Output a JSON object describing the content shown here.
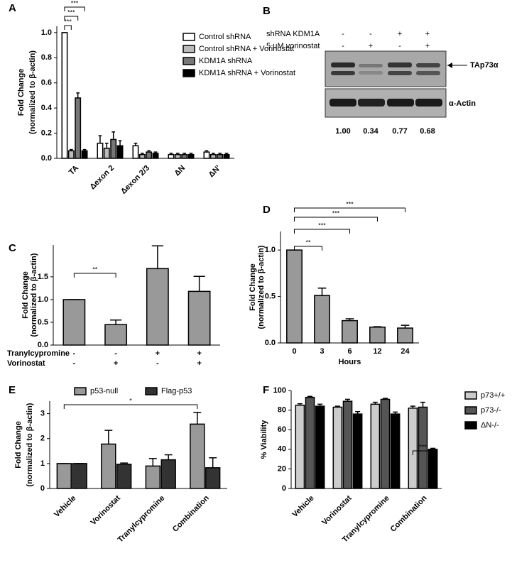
{
  "chart_data": [
    {
      "panel": "A",
      "type": "bar",
      "ylabel": [
        "Fold Change",
        "(normalized to β-actin)"
      ],
      "categories": [
        "TA",
        "Δexon 2",
        "Δexon 2/3",
        "ΔN",
        "ΔN'"
      ],
      "series": [
        {
          "name": "Control shRNA",
          "color": "#ffffff",
          "values": [
            1.0,
            0.12,
            0.1,
            0.03,
            0.05
          ],
          "errors": [
            0,
            0.06,
            0.02,
            0.01,
            0.01
          ]
        },
        {
          "name": "Control shRNA + Vorinostat",
          "color": "#bbbbbb",
          "values": [
            0.06,
            0.08,
            0.03,
            0.03,
            0.03
          ],
          "errors": [
            0.01,
            0.04,
            0.01,
            0.01,
            0.01
          ]
        },
        {
          "name": "KDM1A shRNA",
          "color": "#777777",
          "values": [
            0.48,
            0.15,
            0.05,
            0.03,
            0.03
          ],
          "errors": [
            0.04,
            0.06,
            0.01,
            0.01,
            0.01
          ]
        },
        {
          "name": "KDM1A shRNA + Vorinostat",
          "color": "#000000",
          "values": [
            0.06,
            0.1,
            0.04,
            0.03,
            0.03
          ],
          "errors": [
            0.01,
            0.04,
            0.01,
            0.01,
            0.01
          ]
        }
      ],
      "ylim": [
        0,
        1.05
      ],
      "yticks": [
        {
          "value": 0,
          "label": "0.0"
        },
        {
          "value": 0.2,
          "label": "0.2"
        },
        {
          "value": 0.4,
          "label": "0.4"
        },
        {
          "value": 0.6,
          "label": "0.6"
        },
        {
          "value": 0.8,
          "label": "0.8"
        },
        {
          "value": 1,
          "label": "1.0"
        }
      ],
      "annotations": [
        "***",
        "***",
        "***"
      ]
    },
    {
      "panel": "C",
      "type": "bar",
      "ylabel": [
        "Fold Change",
        "(normalized to β-actin)"
      ],
      "values": [
        1.0,
        0.45,
        1.68,
        1.18
      ],
      "errors": [
        0,
        0.1,
        0.5,
        0.33
      ],
      "color": "#999999",
      "conditions": [
        {
          "name": "Tranylcypromine",
          "levels": [
            "-",
            "-",
            "+",
            "+"
          ]
        },
        {
          "name": "Vorinostat",
          "levels": [
            "-",
            "+",
            "-",
            "+"
          ]
        }
      ],
      "ylim": [
        0,
        2.2
      ],
      "yticks": [
        {
          "value": 0,
          "label": "0.0"
        },
        {
          "value": 0.5,
          "label": "0.5"
        },
        {
          "value": 1,
          "label": "1.0"
        },
        {
          "value": 1.5,
          "label": "1.5"
        }
      ],
      "annotations": [
        "**"
      ]
    },
    {
      "panel": "D",
      "type": "bar",
      "ylabel": [
        "Fold Change",
        "(normalized to β-actin)"
      ],
      "xlabel": "Hours",
      "categories": [
        "0",
        "3",
        "6",
        "12",
        "24"
      ],
      "values": [
        1.0,
        0.51,
        0.24,
        0.17,
        0.16
      ],
      "errors": [
        0,
        0.08,
        0.02,
        0.005,
        0.03
      ],
      "color": "#999999",
      "ylim": [
        0,
        1.2
      ],
      "yticks": [
        {
          "value": 0,
          "label": "0.0"
        },
        {
          "value": 0.5,
          "label": "0.5"
        },
        {
          "value": 1,
          "label": "1.0"
        }
      ],
      "annotations": [
        "**",
        "***",
        "***",
        "***"
      ]
    },
    {
      "panel": "E",
      "type": "bar",
      "ylabel": [
        "Fold Change",
        "(normalized to β-actin)"
      ],
      "categories": [
        "Vehicle",
        "Vorinostat",
        "Tranylcypromine",
        "Combination"
      ],
      "series": [
        {
          "name": "p53-null",
          "color": "#999999",
          "values": [
            1.0,
            1.78,
            0.9,
            2.58
          ],
          "errors": [
            0,
            0.55,
            0.3,
            0.47
          ]
        },
        {
          "name": "Flag-p53",
          "color": "#333333",
          "values": [
            1.0,
            0.97,
            1.15,
            0.83
          ],
          "errors": [
            0,
            0.05,
            0.2,
            0.4
          ]
        }
      ],
      "ylim": [
        0,
        3.5
      ],
      "yticks": [
        0,
        1,
        2,
        3
      ],
      "annotations": [
        "*"
      ]
    },
    {
      "panel": "F",
      "type": "bar",
      "ylabel": [
        "% Viability"
      ],
      "categories": [
        "Vehicle",
        "Vorinostat",
        "Tranylcypromine",
        "Combination"
      ],
      "series": [
        {
          "name": "p73+/+",
          "color": "#cccccc",
          "values": [
            85,
            83,
            86,
            82
          ],
          "errors": [
            1.5,
            1,
            2,
            2
          ]
        },
        {
          "name": "p73-/-",
          "color": "#555555",
          "values": [
            93,
            89,
            91,
            83
          ],
          "errors": [
            1,
            2,
            1,
            5
          ]
        },
        {
          "name": "ΔN-/-",
          "color": "#000000",
          "values": [
            84,
            76,
            76,
            40
          ],
          "errors": [
            2,
            2.5,
            2,
            1
          ]
        }
      ],
      "ylim": [
        0,
        100
      ],
      "yticks": [
        0,
        20,
        40,
        60,
        80,
        100
      ],
      "annotations": [
        "***"
      ]
    }
  ],
  "blot": {
    "panel": "B",
    "conditions": [
      {
        "name": "shRNA KDM1A",
        "levels": [
          "-",
          "-",
          "+",
          "+"
        ]
      },
      {
        "name": "5 μM vorinostat",
        "levels": [
          "-",
          "+",
          "-",
          "+"
        ]
      }
    ],
    "bands": [
      "TAp73α",
      "α-Actin"
    ],
    "quantification": [
      "1.00",
      "0.34",
      "0.77",
      "0.68"
    ]
  }
}
